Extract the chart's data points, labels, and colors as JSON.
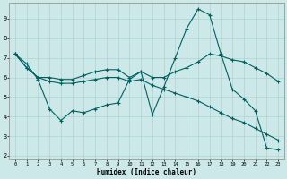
{
  "xlabel": "Humidex (Indice chaleur)",
  "bg_color": "#cce8e8",
  "line_color": "#006060",
  "grid_color": "#aacccc",
  "xlim": [
    -0.5,
    23.5
  ],
  "ylim": [
    1.8,
    9.8
  ],
  "yticks": [
    2,
    3,
    4,
    5,
    6,
    7,
    8,
    9
  ],
  "xticks": [
    0,
    1,
    2,
    3,
    4,
    5,
    6,
    7,
    8,
    9,
    10,
    11,
    12,
    13,
    14,
    15,
    16,
    17,
    18,
    19,
    20,
    21,
    22,
    23
  ],
  "line1_x": [
    0,
    1,
    2,
    3,
    4,
    5,
    6,
    7,
    8,
    9,
    10,
    11,
    12,
    13,
    14,
    15,
    16,
    17,
    18,
    19,
    20,
    21,
    22,
    23
  ],
  "line1_y": [
    7.2,
    6.7,
    5.9,
    4.4,
    3.8,
    4.3,
    4.2,
    4.4,
    4.6,
    4.7,
    5.9,
    6.3,
    4.1,
    5.5,
    7.0,
    8.5,
    9.5,
    9.2,
    7.2,
    5.4,
    4.9,
    4.3,
    2.4,
    2.3
  ],
  "line2_x": [
    0,
    1,
    2,
    3,
    4,
    5,
    6,
    7,
    8,
    9,
    10,
    11,
    12,
    13,
    14,
    15,
    16,
    17,
    18,
    19,
    20,
    21,
    22,
    23
  ],
  "line2_y": [
    7.2,
    6.5,
    6.0,
    6.0,
    5.9,
    5.9,
    6.1,
    6.3,
    6.4,
    6.4,
    6.0,
    6.3,
    6.0,
    6.0,
    6.3,
    6.5,
    6.8,
    7.2,
    7.1,
    6.9,
    6.8,
    6.5,
    6.2,
    5.8
  ],
  "line3_x": [
    0,
    1,
    2,
    3,
    4,
    5,
    6,
    7,
    8,
    9,
    10,
    11,
    12,
    13,
    14,
    15,
    16,
    17,
    18,
    19,
    20,
    21,
    22,
    23
  ],
  "line3_y": [
    7.2,
    6.5,
    6.0,
    5.8,
    5.7,
    5.7,
    5.8,
    5.9,
    6.0,
    6.0,
    5.8,
    5.9,
    5.6,
    5.4,
    5.2,
    5.0,
    4.8,
    4.5,
    4.2,
    3.9,
    3.7,
    3.4,
    3.1,
    2.8
  ]
}
